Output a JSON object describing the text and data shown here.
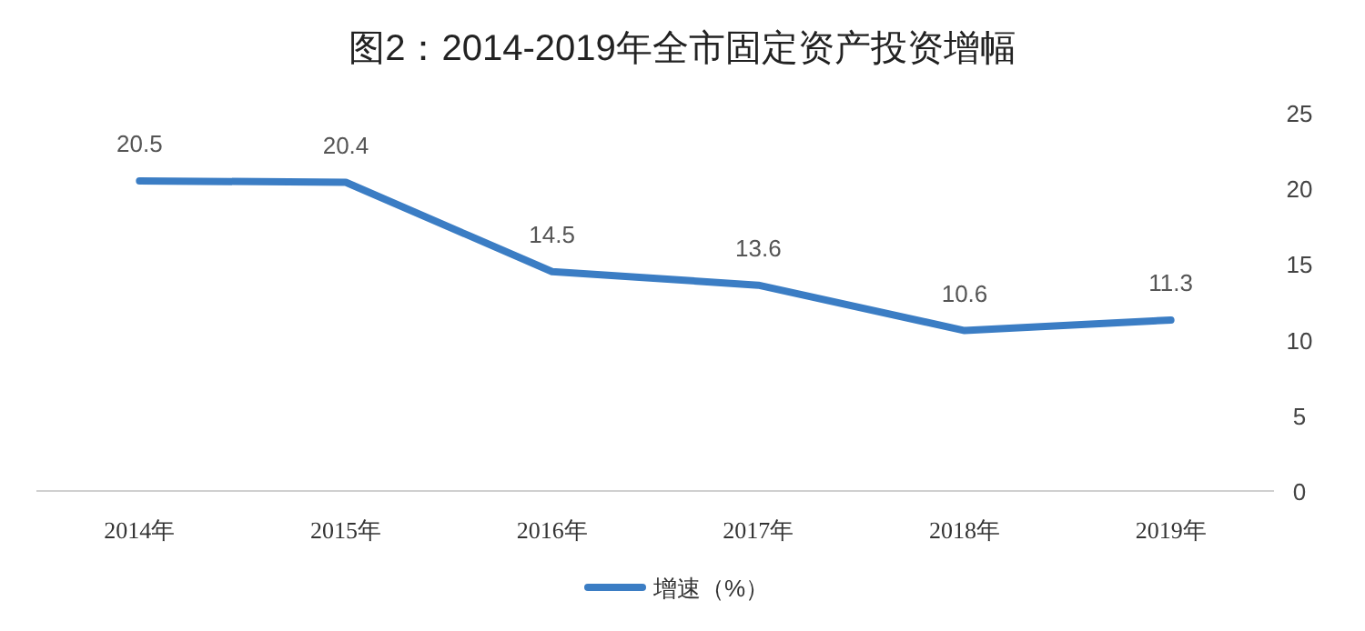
{
  "chart_data": {
    "type": "line",
    "title": "图2：2014-2019年全市固定资产投资增幅",
    "categories": [
      "2014年",
      "2015年",
      "2016年",
      "2017年",
      "2018年",
      "2019年"
    ],
    "series": [
      {
        "name": "增速（%）",
        "color": "#3b7dc4",
        "values": [
          20.5,
          20.4,
          14.5,
          13.6,
          10.6,
          11.3
        ]
      }
    ],
    "ylim": [
      0,
      25
    ],
    "yticks": [
      0,
      5,
      10,
      15,
      20,
      25
    ],
    "data_labels": true,
    "legend": "bottom",
    "grid": false,
    "marker": "none",
    "line_style": "solid"
  }
}
